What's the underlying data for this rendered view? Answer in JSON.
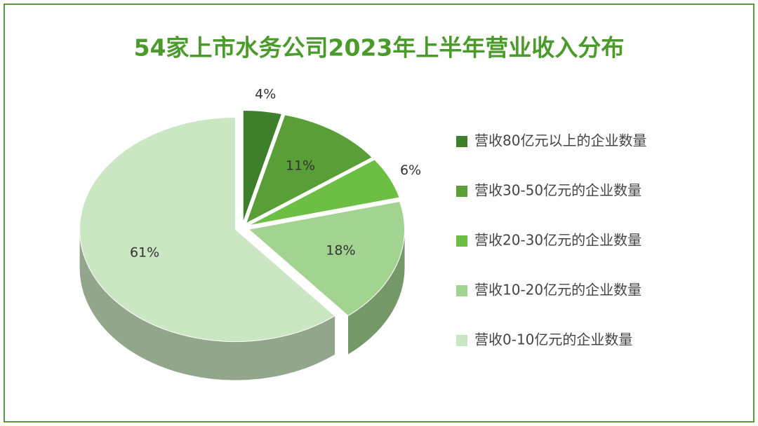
{
  "chart_data": {
    "type": "pie",
    "title": "54家上市水务公司2023年上半年营业收入分布",
    "categories": [
      "营收80亿元以上的企业数量",
      "营收30-50亿元的企业数量",
      "营收20-30亿元的企业数量",
      "营收10-20亿元的企业数量",
      "营收0-10亿元的企业数量"
    ],
    "values": [
      4,
      11,
      6,
      18,
      61
    ],
    "value_labels": [
      "4%",
      "11%",
      "6%",
      "18%",
      "61%"
    ],
    "colors": [
      "#3f7f2c",
      "#5a9e38",
      "#6cbf44",
      "#a2d391",
      "#cbe6c2"
    ],
    "legend": "right"
  }
}
